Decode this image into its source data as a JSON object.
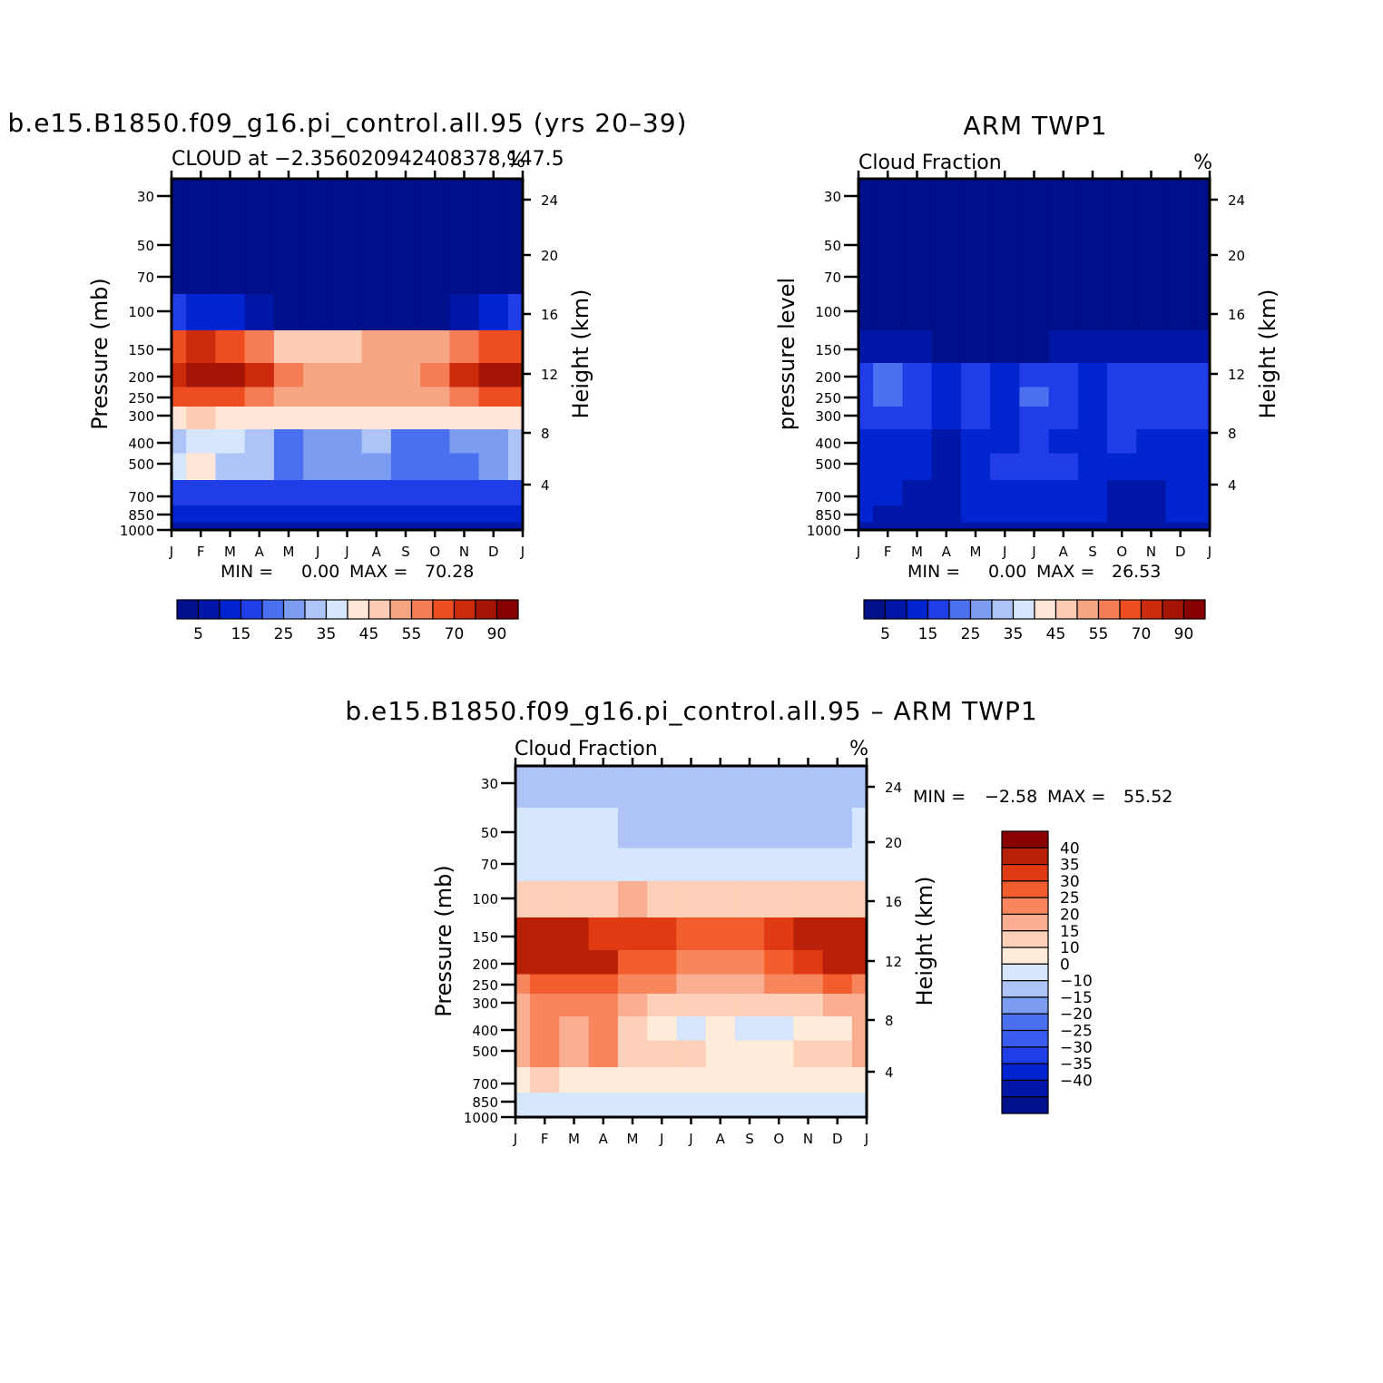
{
  "chart_data": [
    {
      "type": "heatmap",
      "title": "b.e15.B1850.f09_g16.pi_control.all.95 (yrs 20–39)",
      "subtitle_left": "CLOUD at −2.35602094240837​8,147.5",
      "subtitle_right": "%",
      "ylabel": "Pressure (mb)",
      "ylabel_right": "Height (km)",
      "x_ticks": [
        "J",
        "F",
        "M",
        "A",
        "M",
        "J",
        "J",
        "A",
        "S",
        "O",
        "N",
        "D",
        "J"
      ],
      "y_ticks": [
        "30",
        "50",
        "70",
        "100",
        "150",
        "200",
        "250",
        "300",
        "400",
        "500",
        "700",
        "850",
        "1000"
      ],
      "y_ticks_right": [
        "24",
        "20",
        "16",
        "12",
        "8",
        "4"
      ],
      "stats": {
        "min_label": "MIN =",
        "min": "0.00",
        "max_label": "MAX =",
        "max": "70.28"
      },
      "colorbar_labels": [
        "5",
        "15",
        "25",
        "35",
        "45",
        "55",
        "70",
        "90"
      ],
      "levels": [
        [
          0,
          0,
          0,
          0,
          0,
          0,
          0,
          0,
          0,
          0,
          0,
          0,
          0
        ],
        [
          0,
          0,
          0,
          0,
          0,
          0,
          0,
          0,
          0,
          0,
          0,
          0,
          0
        ],
        [
          0,
          0,
          0,
          0,
          0,
          0,
          0,
          0,
          0,
          0,
          0,
          0,
          0
        ],
        [
          3,
          2,
          2,
          1,
          0,
          0,
          0,
          0,
          0,
          0,
          1,
          2,
          3
        ],
        [
          12,
          13,
          12,
          11,
          9,
          9,
          9,
          10,
          10,
          10,
          11,
          12,
          12
        ],
        [
          13,
          14,
          14,
          13,
          11,
          10,
          10,
          10,
          10,
          11,
          13,
          14,
          14
        ],
        [
          12,
          12,
          12,
          11,
          10,
          10,
          10,
          10,
          10,
          10,
          11,
          12,
          12
        ],
        [
          8,
          9,
          8,
          8,
          8,
          8,
          8,
          8,
          8,
          8,
          8,
          8,
          8
        ],
        [
          6,
          7,
          7,
          6,
          4,
          5,
          5,
          6,
          4,
          4,
          5,
          5,
          6
        ],
        [
          7,
          8,
          6,
          6,
          4,
          5,
          5,
          5,
          4,
          4,
          4,
          5,
          6
        ],
        [
          3,
          3,
          3,
          3,
          3,
          3,
          3,
          3,
          3,
          3,
          3,
          3,
          3
        ],
        [
          2,
          2,
          2,
          2,
          2,
          2,
          2,
          2,
          2,
          2,
          2,
          2,
          2
        ],
        [
          1,
          1,
          1,
          1,
          1,
          1,
          1,
          1,
          1,
          1,
          1,
          1,
          1
        ]
      ]
    },
    {
      "type": "heatmap",
      "title": "ARM TWP1",
      "subtitle_left": "Cloud Fraction",
      "subtitle_right": "%",
      "ylabel": "pressure level",
      "ylabel_right": "Height (km)",
      "x_ticks": [
        "J",
        "F",
        "M",
        "A",
        "M",
        "J",
        "J",
        "A",
        "S",
        "O",
        "N",
        "D",
        "J"
      ],
      "y_ticks": [
        "30",
        "50",
        "70",
        "100",
        "150",
        "200",
        "250",
        "300",
        "400",
        "500",
        "700",
        "850",
        "1000"
      ],
      "y_ticks_right": [
        "24",
        "20",
        "16",
        "12",
        "8",
        "4"
      ],
      "stats": {
        "min_label": "MIN =",
        "min": "0.00",
        "max_label": "MAX =",
        "max": "26.53"
      },
      "colorbar_labels": [
        "5",
        "15",
        "25",
        "35",
        "45",
        "55",
        "70",
        "90"
      ],
      "levels": [
        [
          0,
          0,
          0,
          0,
          0,
          0,
          0,
          0,
          0,
          0,
          0,
          0,
          0
        ],
        [
          0,
          0,
          0,
          0,
          0,
          0,
          0,
          0,
          0,
          0,
          0,
          0,
          0
        ],
        [
          0,
          0,
          0,
          0,
          0,
          0,
          0,
          0,
          0,
          0,
          0,
          0,
          0
        ],
        [
          0,
          0,
          0,
          0,
          0,
          0,
          0,
          0,
          0,
          0,
          0,
          0,
          0
        ],
        [
          1,
          1,
          1,
          0,
          0,
          0,
          0,
          1,
          1,
          1,
          1,
          1,
          1
        ],
        [
          3,
          4,
          3,
          2,
          3,
          2,
          3,
          3,
          2,
          3,
          3,
          3,
          3
        ],
        [
          3,
          4,
          3,
          2,
          3,
          2,
          4,
          3,
          2,
          3,
          3,
          3,
          3
        ],
        [
          3,
          3,
          3,
          2,
          3,
          2,
          3,
          3,
          2,
          3,
          3,
          3,
          3
        ],
        [
          2,
          2,
          2,
          1,
          2,
          2,
          3,
          2,
          2,
          3,
          2,
          2,
          2
        ],
        [
          2,
          2,
          2,
          1,
          2,
          3,
          3,
          3,
          2,
          2,
          2,
          2,
          2
        ],
        [
          2,
          2,
          1,
          1,
          2,
          2,
          2,
          2,
          2,
          1,
          1,
          2,
          2
        ],
        [
          2,
          1,
          1,
          1,
          2,
          2,
          2,
          2,
          2,
          1,
          1,
          2,
          2
        ],
        [
          1,
          1,
          1,
          1,
          1,
          1,
          1,
          1,
          1,
          1,
          1,
          1,
          1
        ]
      ]
    },
    {
      "type": "heatmap",
      "title": "b.e15.B1850.f09_g16.pi_control.all.95 – ARM TWP1",
      "subtitle_left": "Cloud Fraction",
      "subtitle_right": "%",
      "ylabel": "Pressure (mb)",
      "ylabel_right": "Height (km)",
      "x_ticks": [
        "J",
        "F",
        "M",
        "A",
        "M",
        "J",
        "J",
        "A",
        "S",
        "O",
        "N",
        "D",
        "J"
      ],
      "y_ticks": [
        "30",
        "50",
        "70",
        "100",
        "150",
        "200",
        "250",
        "300",
        "400",
        "500",
        "700",
        "850",
        "1000"
      ],
      "y_ticks_right": [
        "24",
        "20",
        "16",
        "12",
        "8",
        "4"
      ],
      "stats": {
        "min_label": "MIN =",
        "min": "−2.58",
        "max_label": "MAX =",
        "max": "55.52"
      },
      "colorbar_labels": [
        "40",
        "35",
        "30",
        "25",
        "20",
        "15",
        "10",
        "0",
        "−10",
        "−15",
        "−20",
        "−25",
        "−30",
        "−35",
        "−40"
      ],
      "levels": [
        [
          7,
          7,
          7,
          7,
          7,
          7,
          7,
          7,
          7,
          7,
          7,
          7,
          7
        ],
        [
          8,
          8,
          8,
          8,
          7,
          7,
          7,
          7,
          7,
          7,
          7,
          7,
          8
        ],
        [
          8,
          8,
          8,
          8,
          8,
          8,
          8,
          8,
          8,
          8,
          8,
          8,
          8
        ],
        [
          10,
          10,
          10,
          10,
          11,
          10,
          10,
          10,
          10,
          10,
          10,
          10,
          10
        ],
        [
          15,
          15,
          15,
          14,
          14,
          14,
          13,
          13,
          13,
          14,
          15,
          15,
          15
        ],
        [
          15,
          15,
          15,
          15,
          13,
          13,
          12,
          12,
          12,
          13,
          14,
          15,
          15
        ],
        [
          12,
          13,
          13,
          13,
          12,
          12,
          11,
          11,
          11,
          12,
          12,
          13,
          12
        ],
        [
          11,
          12,
          12,
          12,
          11,
          10,
          10,
          10,
          10,
          10,
          10,
          11,
          11
        ],
        [
          11,
          12,
          11,
          12,
          10,
          9,
          8,
          9,
          8,
          8,
          9,
          9,
          11
        ],
        [
          11,
          12,
          11,
          12,
          10,
          10,
          10,
          9,
          9,
          9,
          10,
          10,
          11
        ],
        [
          9,
          10,
          9,
          9,
          9,
          9,
          9,
          9,
          9,
          9,
          9,
          9,
          9
        ],
        [
          8,
          8,
          8,
          8,
          8,
          8,
          8,
          8,
          8,
          8,
          8,
          8,
          8
        ],
        [
          8,
          8,
          8,
          8,
          8,
          8,
          8,
          8,
          8,
          8,
          8,
          8,
          8
        ]
      ]
    }
  ],
  "palettes": {
    "field": [
      "#000f8a",
      "#0016a6",
      "#0024d0",
      "#1f3ee8",
      "#4a70f0",
      "#7c9cf2",
      "#aec4f7",
      "#d6e6fc",
      "#ffe6d6",
      "#fccdb4",
      "#f7a684",
      "#f57d55",
      "#ee4d22",
      "#cc2a0c",
      "#a51505",
      "#870000"
    ],
    "diff": [
      "#000f8a",
      "#0016a6",
      "#0024d0",
      "#1f3ee8",
      "#3a5cee",
      "#4a70f0",
      "#7c9cf2",
      "#aec4f7",
      "#d6e6fc",
      "#ffebd9",
      "#fdd0b9",
      "#faae91",
      "#f8865d",
      "#f15d2d",
      "#df3a12",
      "#b82007",
      "#8a0000"
    ]
  }
}
